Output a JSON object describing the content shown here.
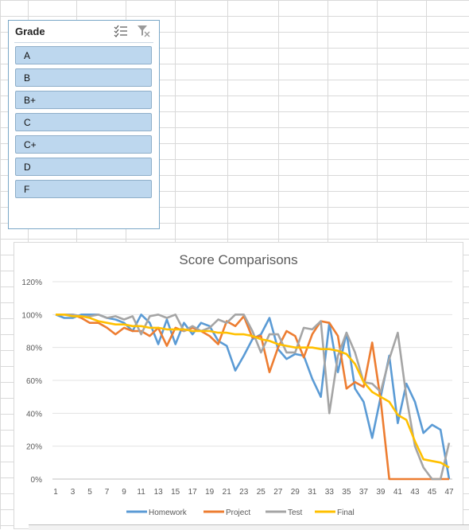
{
  "slicer": {
    "title": "Grade",
    "multiselect_icon": "multi-select-icon",
    "clear_filter_icon": "clear-filter-icon",
    "items": [
      {
        "label": "A"
      },
      {
        "label": "B"
      },
      {
        "label": "B+"
      },
      {
        "label": "C"
      },
      {
        "label": "C+"
      },
      {
        "label": "D"
      },
      {
        "label": "F"
      }
    ]
  },
  "colors": {
    "Homework": "#5b9bd5",
    "Project": "#ed7d31",
    "Test": "#a5a5a5",
    "Final": "#ffc000"
  },
  "chart_data": {
    "type": "line",
    "title": "Score Comparisons",
    "xlabel": "",
    "ylabel": "",
    "x": [
      1,
      2,
      3,
      4,
      5,
      6,
      7,
      8,
      9,
      10,
      11,
      12,
      13,
      14,
      15,
      16,
      17,
      18,
      19,
      20,
      21,
      22,
      23,
      24,
      25,
      26,
      27,
      28,
      29,
      30,
      31,
      32,
      33,
      34,
      35,
      36,
      37,
      38,
      39,
      40,
      41,
      42,
      43,
      44,
      45,
      46,
      47
    ],
    "x_ticks": [
      "1",
      "3",
      "5",
      "7",
      "9",
      "11",
      "13",
      "15",
      "17",
      "19",
      "21",
      "23",
      "25",
      "27",
      "29",
      "31",
      "33",
      "35",
      "37",
      "39",
      "41",
      "43",
      "45",
      "47"
    ],
    "y_ticks": [
      "0%",
      "20%",
      "40%",
      "60%",
      "80%",
      "100%",
      "120%"
    ],
    "ylim": [
      0,
      1.2
    ],
    "grid": true,
    "legend": "bottom",
    "series": [
      {
        "name": "Homework",
        "values": [
          1.0,
          0.98,
          0.98,
          1.0,
          1.0,
          1.0,
          0.98,
          0.97,
          0.95,
          0.9,
          1.0,
          0.95,
          0.82,
          0.97,
          0.82,
          0.95,
          0.88,
          0.95,
          0.93,
          0.84,
          0.81,
          0.66,
          0.75,
          0.85,
          0.88,
          0.98,
          0.79,
          0.73,
          0.76,
          0.75,
          0.61,
          0.5,
          0.95,
          0.65,
          0.89,
          0.55,
          0.47,
          0.25,
          0.5,
          0.75,
          0.34,
          0.58,
          0.47,
          0.28,
          0.33,
          0.3,
          0.0
        ]
      },
      {
        "name": "Project",
        "values": [
          1.0,
          1.0,
          1.0,
          0.98,
          0.95,
          0.95,
          0.92,
          0.88,
          0.92,
          0.9,
          0.9,
          0.87,
          0.92,
          0.81,
          0.92,
          0.9,
          0.92,
          0.9,
          0.87,
          0.82,
          0.96,
          0.93,
          0.99,
          0.86,
          0.87,
          0.65,
          0.8,
          0.9,
          0.87,
          0.74,
          0.88,
          0.96,
          0.95,
          0.87,
          0.55,
          0.59,
          0.56,
          0.83,
          0.48,
          0.0,
          0.0,
          0.0,
          0.0,
          0.0,
          0.0,
          0.0,
          0.0
        ]
      },
      {
        "name": "Test",
        "values": [
          1.0,
          1.0,
          1.0,
          0.99,
          0.99,
          1.0,
          0.98,
          0.99,
          0.97,
          0.99,
          0.88,
          0.99,
          1.0,
          0.98,
          1.0,
          0.9,
          0.93,
          0.9,
          0.92,
          0.97,
          0.95,
          1.0,
          1.0,
          0.9,
          0.77,
          0.88,
          0.88,
          0.77,
          0.77,
          0.92,
          0.91,
          0.96,
          0.4,
          0.75,
          0.89,
          0.77,
          0.59,
          0.58,
          0.53,
          0.73,
          0.89,
          0.5,
          0.2,
          0.07,
          0.0,
          0.0,
          0.22
        ]
      },
      {
        "name": "Final",
        "values": [
          1.0,
          1.0,
          0.99,
          0.99,
          0.98,
          0.96,
          0.95,
          0.94,
          0.94,
          0.93,
          0.93,
          0.92,
          0.92,
          0.91,
          0.91,
          0.91,
          0.9,
          0.9,
          0.9,
          0.89,
          0.89,
          0.88,
          0.88,
          0.87,
          0.85,
          0.84,
          0.82,
          0.81,
          0.8,
          0.8,
          0.8,
          0.79,
          0.79,
          0.78,
          0.76,
          0.7,
          0.59,
          0.53,
          0.5,
          0.47,
          0.39,
          0.36,
          0.23,
          0.12,
          0.11,
          0.1,
          0.07
        ]
      }
    ]
  }
}
